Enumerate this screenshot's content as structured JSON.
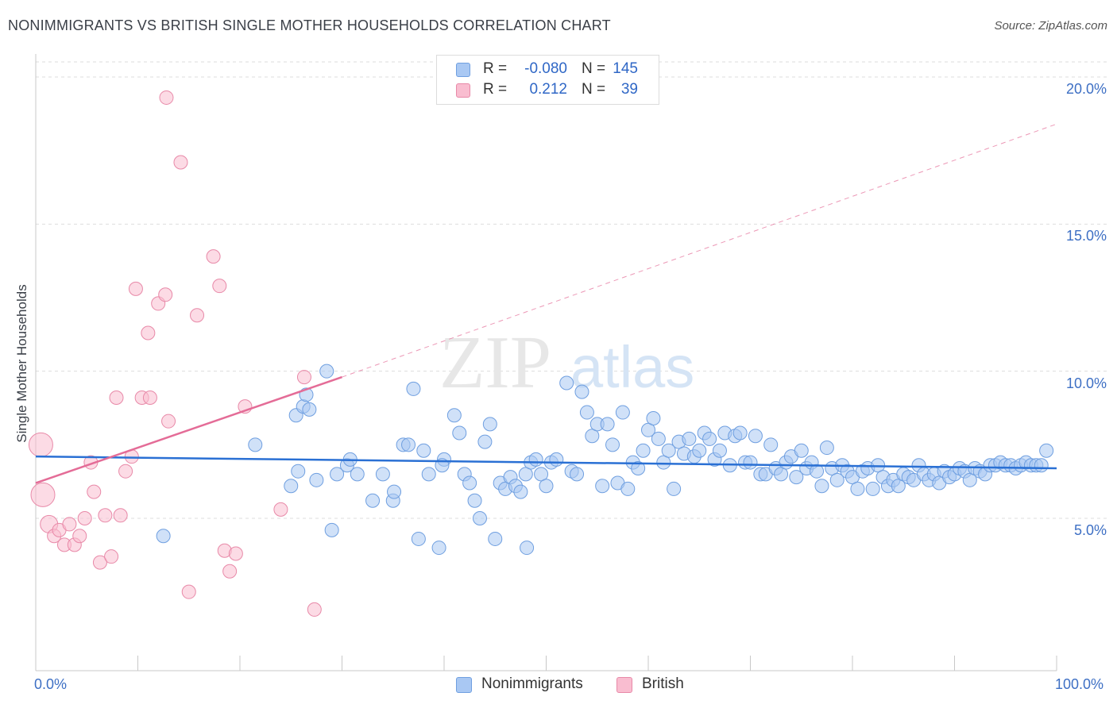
{
  "title": "NONIMMIGRANTS VS BRITISH SINGLE MOTHER HOUSEHOLDS CORRELATION CHART",
  "source": "Source: ZipAtlas.com",
  "watermark": {
    "zip": "ZIP",
    "atlas": "atlas"
  },
  "legend": {
    "rows": [
      {
        "r_label": "R =",
        "r_value": "-0.080",
        "n_label": "N =",
        "n_value": "145",
        "color": "#a9c8f3",
        "border": "#6f9fe0"
      },
      {
        "r_label": "R =",
        "r_value": "0.212",
        "n_label": "N =",
        "n_value": "39",
        "color": "#f9bdd0",
        "border": "#e889a8"
      }
    ]
  },
  "bottom_legend": {
    "series1": "Nonimmigrants",
    "series2": "British"
  },
  "colors": {
    "blue_fill": "#a9c8f3",
    "blue_stroke": "#6f9fe0",
    "blue_line": "#2a70d4",
    "pink_fill": "#f9bdd0",
    "pink_stroke": "#e889a8",
    "pink_line": "#e46c97",
    "tick_text": "#3d6fc4",
    "grid": "#dddddd"
  },
  "chart_data": {
    "type": "scatter",
    "title": "NONIMMIGRANTS VS BRITISH SINGLE MOTHER HOUSEHOLDS CORRELATION CHART",
    "xlabel": "",
    "ylabel": "Single Mother Households",
    "xlim": [
      0,
      100
    ],
    "ylim": [
      0,
      20.5
    ],
    "x_tick_labels": [
      "0.0%",
      "100.0%"
    ],
    "y_ticks": [
      5,
      10,
      15,
      20
    ],
    "y_tick_labels": [
      "5.0%",
      "10.0%",
      "15.0%",
      "20.0%"
    ],
    "series": [
      {
        "name": "Nonimmigrants",
        "R": -0.08,
        "N": 145,
        "trend": {
          "x": [
            0,
            100
          ],
          "y": [
            7.1,
            6.7
          ],
          "style": "solid"
        },
        "points": [
          [
            12.5,
            4.4
          ],
          [
            21.5,
            7.5
          ],
          [
            25,
            6.1
          ],
          [
            25.5,
            8.5
          ],
          [
            25.7,
            6.6
          ],
          [
            26.2,
            8.8
          ],
          [
            26.5,
            9.2
          ],
          [
            26.8,
            8.7
          ],
          [
            27.5,
            6.3
          ],
          [
            28.5,
            10.0
          ],
          [
            29,
            4.6
          ],
          [
            29.5,
            6.5
          ],
          [
            30.5,
            6.8
          ],
          [
            30.8,
            7.0
          ],
          [
            31.5,
            6.5
          ],
          [
            33,
            5.6
          ],
          [
            34,
            6.5
          ],
          [
            35,
            5.6
          ],
          [
            35.1,
            5.9
          ],
          [
            36,
            7.5
          ],
          [
            36.5,
            7.5
          ],
          [
            37,
            9.4
          ],
          [
            37.5,
            4.3
          ],
          [
            38,
            7.3
          ],
          [
            38.5,
            6.5
          ],
          [
            39.5,
            4.0
          ],
          [
            40,
            7.0
          ],
          [
            39.8,
            6.8
          ],
          [
            41,
            8.5
          ],
          [
            41.5,
            7.9
          ],
          [
            42,
            6.5
          ],
          [
            42.5,
            6.2
          ],
          [
            43,
            5.6
          ],
          [
            43.5,
            5.0
          ],
          [
            44,
            7.6
          ],
          [
            44.5,
            8.2
          ],
          [
            45,
            4.3
          ],
          [
            45.5,
            6.2
          ],
          [
            46,
            6.0
          ],
          [
            46.5,
            6.4
          ],
          [
            47,
            6.1
          ],
          [
            47.5,
            5.9
          ],
          [
            48,
            6.5
          ],
          [
            48.5,
            6.9
          ],
          [
            49,
            7.0
          ],
          [
            48.1,
            4.0
          ],
          [
            49.5,
            6.5
          ],
          [
            50,
            6.1
          ],
          [
            50.5,
            6.9
          ],
          [
            51,
            7.0
          ],
          [
            52,
            9.6
          ],
          [
            52.5,
            6.6
          ],
          [
            53,
            6.5
          ],
          [
            53.5,
            9.3
          ],
          [
            54,
            8.6
          ],
          [
            54.5,
            7.8
          ],
          [
            55,
            8.2
          ],
          [
            55.5,
            6.1
          ],
          [
            56,
            8.2
          ],
          [
            56.5,
            7.5
          ],
          [
            57,
            6.2
          ],
          [
            57.5,
            8.6
          ],
          [
            58,
            6.0
          ],
          [
            58.5,
            6.9
          ],
          [
            59,
            6.7
          ],
          [
            59.5,
            7.3
          ],
          [
            60,
            8.0
          ],
          [
            60.5,
            8.4
          ],
          [
            61,
            7.7
          ],
          [
            61.5,
            6.9
          ],
          [
            62,
            7.3
          ],
          [
            62.5,
            6.0
          ],
          [
            63,
            7.6
          ],
          [
            63.5,
            7.2
          ],
          [
            64,
            7.7
          ],
          [
            64.5,
            7.1
          ],
          [
            65,
            7.3
          ],
          [
            65.5,
            7.9
          ],
          [
            66,
            7.7
          ],
          [
            66.5,
            7.0
          ],
          [
            67,
            7.3
          ],
          [
            67.5,
            7.9
          ],
          [
            68,
            6.8
          ],
          [
            68.5,
            7.8
          ],
          [
            69,
            7.9
          ],
          [
            69.5,
            6.9
          ],
          [
            70,
            6.9
          ],
          [
            70.5,
            7.8
          ],
          [
            71,
            6.5
          ],
          [
            71.5,
            6.5
          ],
          [
            72,
            7.5
          ],
          [
            72.5,
            6.7
          ],
          [
            73,
            6.5
          ],
          [
            73.5,
            6.9
          ],
          [
            74,
            7.1
          ],
          [
            74.5,
            6.4
          ],
          [
            75,
            7.3
          ],
          [
            75.5,
            6.7
          ],
          [
            76,
            6.9
          ],
          [
            76.5,
            6.6
          ],
          [
            77,
            6.1
          ],
          [
            77.5,
            7.4
          ],
          [
            78,
            6.7
          ],
          [
            78.5,
            6.3
          ],
          [
            79,
            6.8
          ],
          [
            79.5,
            6.6
          ],
          [
            80,
            6.4
          ],
          [
            80.5,
            6.0
          ],
          [
            81,
            6.6
          ],
          [
            81.5,
            6.7
          ],
          [
            82,
            6.0
          ],
          [
            82.5,
            6.8
          ],
          [
            83,
            6.4
          ],
          [
            83.5,
            6.1
          ],
          [
            84,
            6.3
          ],
          [
            84.5,
            6.1
          ],
          [
            85,
            6.5
          ],
          [
            85.5,
            6.4
          ],
          [
            86,
            6.3
          ],
          [
            86.5,
            6.8
          ],
          [
            87,
            6.5
          ],
          [
            87.5,
            6.3
          ],
          [
            88,
            6.5
          ],
          [
            88.5,
            6.2
          ],
          [
            89,
            6.6
          ],
          [
            89.5,
            6.4
          ],
          [
            90,
            6.5
          ],
          [
            90.5,
            6.7
          ],
          [
            91,
            6.6
          ],
          [
            91.5,
            6.3
          ],
          [
            92,
            6.7
          ],
          [
            92.5,
            6.6
          ],
          [
            93,
            6.5
          ],
          [
            93.5,
            6.8
          ],
          [
            94,
            6.8
          ],
          [
            94.5,
            6.9
          ],
          [
            95,
            6.8
          ],
          [
            95.5,
            6.8
          ],
          [
            96,
            6.7
          ],
          [
            96.5,
            6.8
          ],
          [
            97,
            6.9
          ],
          [
            97.5,
            6.8
          ],
          [
            98,
            6.8
          ],
          [
            98.5,
            6.8
          ],
          [
            99,
            7.3
          ]
        ]
      },
      {
        "name": "British",
        "R": 0.212,
        "N": 39,
        "trend": {
          "x": [
            0,
            30
          ],
          "y": [
            6.2,
            9.8
          ],
          "style": "solid",
          "extension": {
            "x": [
              30,
              100
            ],
            "y": [
              9.8,
              18.4
            ],
            "style": "dashed"
          }
        },
        "points": [
          [
            0.5,
            7.5
          ],
          [
            0.7,
            5.8
          ],
          [
            1.3,
            4.8
          ],
          [
            1.8,
            4.4
          ],
          [
            2.3,
            4.6
          ],
          [
            2.8,
            4.1
          ],
          [
            3.3,
            4.8
          ],
          [
            3.8,
            4.1
          ],
          [
            4.3,
            4.4
          ],
          [
            4.8,
            5.0
          ],
          [
            5.4,
            6.9
          ],
          [
            5.7,
            5.9
          ],
          [
            6.3,
            3.5
          ],
          [
            6.8,
            5.1
          ],
          [
            7.4,
            3.7
          ],
          [
            7.9,
            9.1
          ],
          [
            8.3,
            5.1
          ],
          [
            8.8,
            6.6
          ],
          [
            9.4,
            7.1
          ],
          [
            9.8,
            12.8
          ],
          [
            10.4,
            9.1
          ],
          [
            11.0,
            11.3
          ],
          [
            11.2,
            9.1
          ],
          [
            12.0,
            12.3
          ],
          [
            12.7,
            12.6
          ],
          [
            12.8,
            19.3
          ],
          [
            13.0,
            8.3
          ],
          [
            14.2,
            17.1
          ],
          [
            15.0,
            2.5
          ],
          [
            15.8,
            11.9
          ],
          [
            17.4,
            13.9
          ],
          [
            18.0,
            12.9
          ],
          [
            18.5,
            3.9
          ],
          [
            19.0,
            3.2
          ],
          [
            19.6,
            3.8
          ],
          [
            20.5,
            8.8
          ],
          [
            24.0,
            5.3
          ],
          [
            26.3,
            9.8
          ],
          [
            27.3,
            1.9
          ]
        ]
      }
    ]
  }
}
